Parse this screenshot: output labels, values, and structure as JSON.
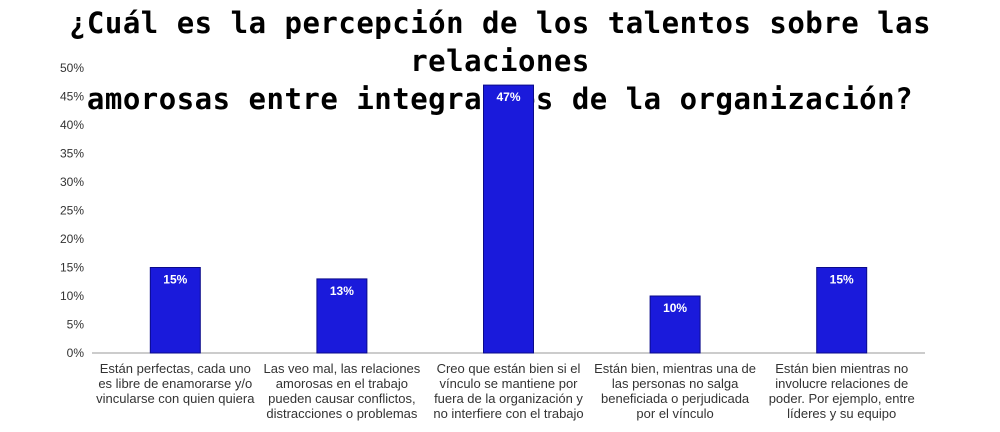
{
  "chart_data": {
    "type": "bar",
    "title_lines": [
      "¿Cuál es la percepción de los talentos sobre las relaciones",
      "amorosas entre integrantes de la organización?"
    ],
    "categories": [
      [
        "Están perfectas, cada uno",
        "es libre de enamorarse y/o",
        "vincularse con quien quiera"
      ],
      [
        "Las veo mal, las relaciones",
        "amorosas en el trabajo",
        "pueden causar conflictos,",
        "distracciones o problemas"
      ],
      [
        "Creo que están bien si el",
        "vínculo se mantiene por",
        "fuera de la organización y",
        "no interfiere con el trabajo"
      ],
      [
        "Están bien, mientras una de",
        "las personas no salga",
        "beneficiada o perjudicada",
        "por el vínculo"
      ],
      [
        "Están bien mientras no",
        "involucre relaciones de",
        "poder. Por ejemplo, entre",
        "líderes y su equipo"
      ]
    ],
    "values": [
      15,
      13,
      47,
      10,
      15
    ],
    "data_labels": [
      "15%",
      "13%",
      "47%",
      "10%",
      "15%"
    ],
    "y_ticks": [
      "0%",
      "5%",
      "10%",
      "15%",
      "20%",
      "25%",
      "30%",
      "35%",
      "40%",
      "45%",
      "50%"
    ],
    "ylim": [
      0,
      50
    ],
    "grid": false,
    "colors": {
      "bar": "#1a1adb",
      "bar_edge": "#0a0a8a",
      "axis": "#999999"
    }
  }
}
